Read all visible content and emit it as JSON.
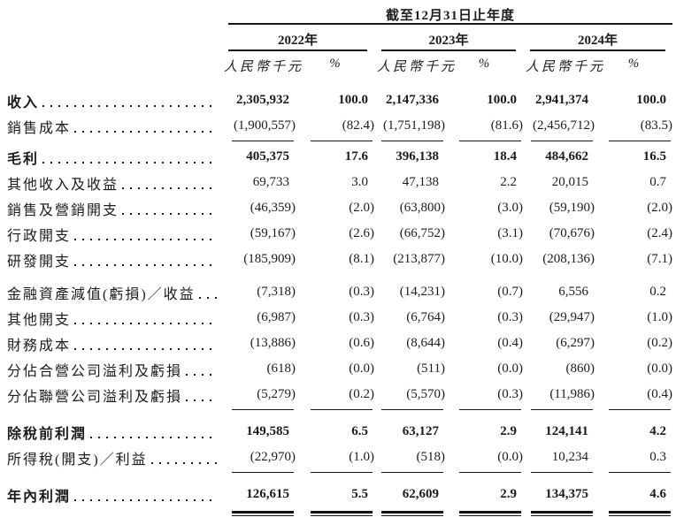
{
  "page": {
    "background": "#ffffff",
    "ink": "#1c1c1c"
  },
  "table": {
    "title": "截至12月31日止年度",
    "year_headers": [
      "2022年",
      "2023年",
      "2024年"
    ],
    "column_subheaders": {
      "amount": "人民幣千元",
      "percent": "%"
    },
    "rows": [
      {
        "label": "收入",
        "bold": true,
        "values": [
          "2,305,932",
          "100.0",
          "2,147,336",
          "100.0",
          "2,941,374",
          "100.0"
        ]
      },
      {
        "label": "銷售成本",
        "bold": false,
        "values": [
          "(1,900,557)",
          "(82.4)",
          "(1,751,198)",
          "(81.6)",
          "(2,456,712)",
          "(83.5)"
        ],
        "rule_after": "single"
      },
      {
        "label": "毛利",
        "bold": true,
        "values": [
          "405,375",
          "17.6",
          "396,138",
          "18.4",
          "484,662",
          "16.5"
        ]
      },
      {
        "label": "其他收入及收益",
        "bold": false,
        "values": [
          "69,733",
          "3.0",
          "47,138",
          "2.2",
          "20,015",
          "0.7"
        ]
      },
      {
        "label": "銷售及營銷開支",
        "bold": false,
        "values": [
          "(46,359)",
          "(2.0)",
          "(63,800)",
          "(3.0)",
          "(59,190)",
          "(2.0)"
        ]
      },
      {
        "label": "行政開支",
        "bold": false,
        "values": [
          "(59,167)",
          "(2.6)",
          "(66,752)",
          "(3.1)",
          "(70,676)",
          "(2.4)"
        ]
      },
      {
        "label": "研發開支",
        "bold": false,
        "values": [
          "(185,909)",
          "(8.1)",
          "(213,877)",
          "(10.0)",
          "(208,136)",
          "(7.1)"
        ],
        "gap_after": true
      },
      {
        "label": "金融資產減值(虧損)／收益",
        "bold": false,
        "values": [
          "(7,318)",
          "(0.3)",
          "(14,231)",
          "(0.7)",
          "6,556",
          "0.2"
        ]
      },
      {
        "label": "其他開支",
        "bold": false,
        "values": [
          "(6,987)",
          "(0.3)",
          "(6,764)",
          "(0.3)",
          "(29,947)",
          "(1.0)"
        ]
      },
      {
        "label": "財務成本",
        "bold": false,
        "values": [
          "(13,886)",
          "(0.6)",
          "(8,644)",
          "(0.4)",
          "(6,297)",
          "(0.2)"
        ]
      },
      {
        "label": "分佔合營公司溢利及虧損",
        "bold": false,
        "values": [
          "(618)",
          "(0.0)",
          "(511)",
          "(0.0)",
          "(860)",
          "(0.0)"
        ]
      },
      {
        "label": "分佔聯營公司溢利及虧損",
        "bold": false,
        "values": [
          "(5,279)",
          "(0.2)",
          "(5,570)",
          "(0.3)",
          "(11,986)",
          "(0.4)"
        ],
        "rule_after": "single_tall"
      },
      {
        "label": "除稅前利潤",
        "bold": true,
        "values": [
          "149,585",
          "6.5",
          "63,127",
          "2.9",
          "124,141",
          "4.2"
        ]
      },
      {
        "label": "所得稅(開支)／利益",
        "bold": false,
        "values": [
          "(22,970)",
          "(1.0)",
          "(518)",
          "(0.0)",
          "10,234",
          "0.3"
        ],
        "rule_after": "single_tall"
      },
      {
        "label": "年內利潤",
        "bold": true,
        "values": [
          "126,615",
          "5.5",
          "62,609",
          "2.9",
          "134,375",
          "4.6"
        ],
        "rule_after": "double"
      }
    ]
  }
}
